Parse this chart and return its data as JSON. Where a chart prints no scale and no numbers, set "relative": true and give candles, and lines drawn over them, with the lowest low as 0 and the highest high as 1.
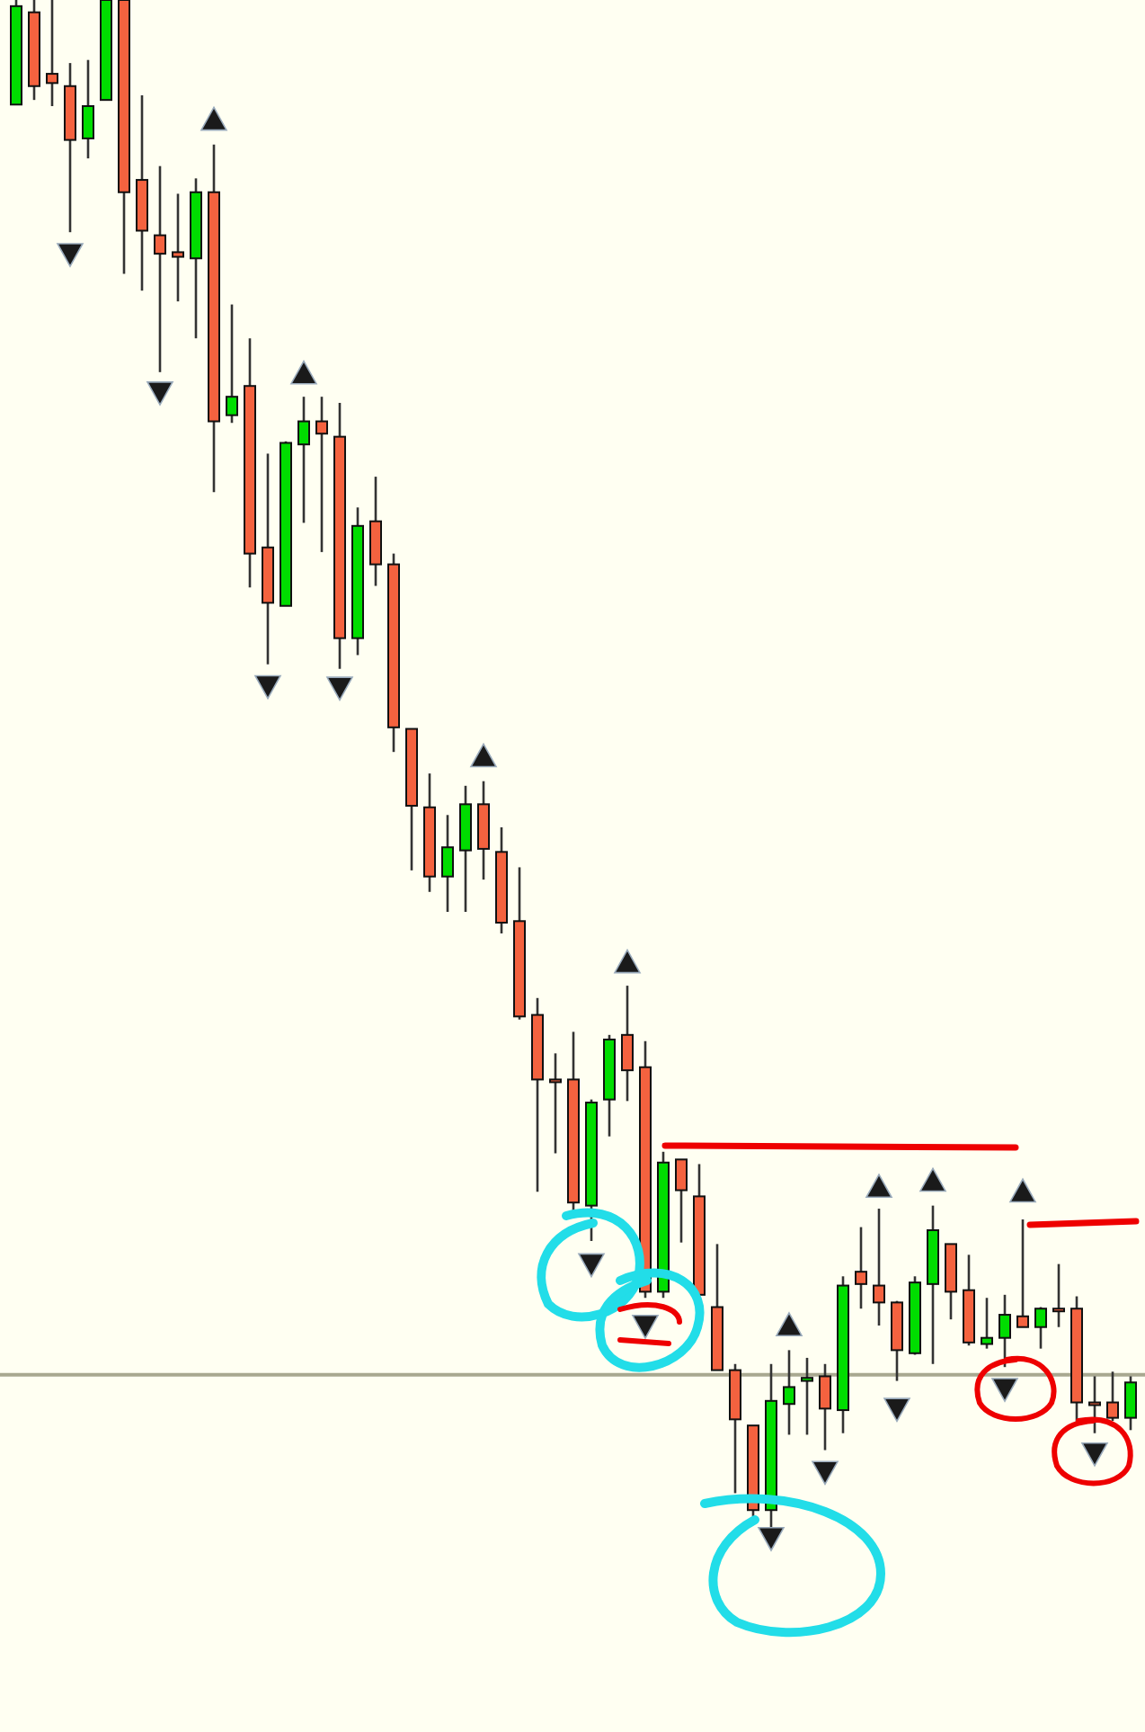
{
  "chart_data": {
    "type": "candlestick",
    "relative": true,
    "categories": [
      null,
      null,
      null,
      null,
      null,
      null,
      null,
      null,
      null,
      null,
      null,
      null,
      null,
      null,
      null,
      null,
      null,
      null,
      null,
      null,
      null,
      null,
      null,
      null,
      null,
      null,
      null,
      null,
      null,
      null,
      null,
      null,
      null,
      null,
      null,
      null,
      null,
      null,
      null,
      null,
      null,
      null,
      null,
      null,
      null,
      null,
      null,
      null,
      null,
      null,
      null,
      null,
      null,
      null,
      null,
      null,
      null,
      null,
      null,
      null,
      null,
      null,
      null
    ],
    "colors": [
      "#00dd00",
      "#f4623f",
      "#f4623f",
      "#f4623f",
      "#00dd00",
      "#00dd00",
      "#f4623f",
      "#f4623f",
      "#f4623f",
      "#f4623f",
      "#00dd00",
      "#f4623f",
      "#00dd00",
      "#f4623f",
      "#f4623f",
      "#00dd00",
      "#00dd00",
      "#f4623f",
      "#f4623f",
      "#00dd00",
      "#f4623f",
      "#f4623f",
      "#f4623f",
      "#f4623f",
      "#00dd00",
      "#00dd00",
      "#f4623f",
      "#f4623f",
      "#f4623f",
      "#f4623f",
      "#f4623f",
      "#f4623f",
      "#00dd00",
      "#00dd00",
      "#f4623f",
      "#f4623f",
      "#00dd00",
      "#f4623f",
      "#f4623f",
      "#f4623f",
      "#f4623f",
      "#f4623f",
      "#00dd00",
      "#00dd00",
      "#00dd00",
      "#f4623f",
      "#00dd00",
      "#f4623f",
      "#f4623f",
      "#f4623f",
      "#00dd00",
      "#00dd00",
      "#f4623f",
      "#f4623f",
      "#00dd00",
      "#00dd00",
      "#f4623f",
      "#00dd00",
      "#f4623f",
      "#f4623f",
      "#f4623f",
      "#f4623f",
      "#00dd00"
    ],
    "ohlc": [
      [
        0.932,
        1,
        0.932,
        0.996
      ],
      [
        0.992,
        1,
        0.935,
        0.944
      ],
      [
        0.952,
        1,
        0.931,
        0.946
      ],
      [
        0.944,
        0.959,
        0.849,
        0.909
      ],
      [
        0.91,
        0.961,
        0.897,
        0.931
      ],
      [
        0.935,
        1,
        0.935,
        1
      ],
      [
        1,
        1,
        0.822,
        0.875
      ],
      [
        0.883,
        0.938,
        0.811,
        0.85
      ],
      [
        0.847,
        0.892,
        0.758,
        0.835
      ],
      [
        0.836,
        0.874,
        0.804,
        0.833
      ],
      [
        0.832,
        0.884,
        0.78,
        0.875
      ],
      [
        0.875,
        0.906,
        0.68,
        0.726
      ],
      [
        0.73,
        0.802,
        0.725,
        0.742
      ],
      [
        0.749,
        0.78,
        0.618,
        0.64
      ],
      [
        0.644,
        0.705,
        0.568,
        0.608
      ],
      [
        0.606,
        0.713,
        0.606,
        0.712
      ],
      [
        0.711,
        0.742,
        0.66,
        0.726
      ],
      [
        0.726,
        0.742,
        0.641,
        0.718
      ],
      [
        0.716,
        0.738,
        0.565,
        0.585
      ],
      [
        0.585,
        0.67,
        0.574,
        0.658
      ],
      [
        0.661,
        0.69,
        0.619,
        0.633
      ],
      [
        0.633,
        0.64,
        0.511,
        0.527
      ],
      [
        0.526,
        0.526,
        0.434,
        0.476
      ],
      [
        0.475,
        0.497,
        0.42,
        0.43
      ],
      [
        0.43,
        0.47,
        0.407,
        0.449
      ],
      [
        0.447,
        0.489,
        0.407,
        0.477
      ],
      [
        0.477,
        0.492,
        0.428,
        0.448
      ],
      [
        0.446,
        0.462,
        0.393,
        0.4
      ],
      [
        0.401,
        0.436,
        0.337,
        0.339
      ],
      [
        0.34,
        0.351,
        0.225,
        0.298
      ],
      [
        0.298,
        0.315,
        0.25,
        0.297
      ],
      [
        0.298,
        0.329,
        0.211,
        0.218
      ],
      [
        0.216,
        0.285,
        0.193,
        0.283
      ],
      [
        0.285,
        0.327,
        0.261,
        0.324
      ],
      [
        0.327,
        0.359,
        0.284,
        0.304
      ],
      [
        0.306,
        0.323,
        0.156,
        0.16
      ],
      [
        0.16,
        0.251,
        0.156,
        0.244
      ],
      [
        0.246,
        0.246,
        0.192,
        0.226
      ],
      [
        0.222,
        0.243,
        0.158,
        0.158
      ],
      [
        0.15,
        0.191,
        0.109,
        0.109
      ],
      [
        0.109,
        0.113,
        0.029,
        0.077
      ],
      [
        0.073,
        0.073,
        0.014,
        0.018
      ],
      [
        0.018,
        0.113,
        0,
        0.089
      ],
      [
        0.087,
        0.122,
        0.067,
        0.098
      ],
      [
        0.102,
        0.117,
        0.067,
        0.104
      ],
      [
        0.105,
        0.113,
        0.057,
        0.084
      ],
      [
        0.083,
        0.17,
        0.068,
        0.164
      ],
      [
        0.173,
        0.202,
        0.149,
        0.165
      ],
      [
        0.164,
        0.214,
        0.138,
        0.153
      ],
      [
        0.153,
        0.154,
        0.102,
        0.122
      ],
      [
        0.12,
        0.17,
        0.119,
        0.166
      ],
      [
        0.165,
        0.216,
        0.113,
        0.2
      ],
      [
        0.191,
        0.191,
        0.142,
        0.16
      ],
      [
        0.161,
        0.184,
        0.125,
        0.127
      ],
      [
        0.126,
        0.156,
        0.123,
        0.13
      ],
      [
        0.13,
        0.158,
        0.111,
        0.145
      ],
      [
        0.144,
        0.207,
        0.137,
        0.137
      ],
      [
        0.137,
        0.15,
        0.123,
        0.149
      ],
      [
        0.149,
        0.178,
        0.137,
        0.149
      ],
      [
        0.149,
        0.157,
        0.074,
        0.088
      ],
      [
        0.088,
        0.105,
        0.068,
        0.088
      ],
      [
        0.088,
        0.108,
        0.076,
        0.078
      ],
      [
        0.078,
        0.105,
        0.07,
        0.101
      ]
    ],
    "series": [
      {
        "type": "scatter",
        "color": "#1a1a1a",
        "marker": "triangle",
        "values": [
          null,
          null,
          null,
          null,
          null,
          null,
          null,
          null,
          null,
          null,
          null,
          0.922,
          null,
          null,
          null,
          null,
          0.757,
          null,
          null,
          null,
          null,
          null,
          null,
          null,
          null,
          null,
          0.508,
          null,
          null,
          null,
          null,
          null,
          null,
          null,
          0.374,
          null,
          null,
          null,
          null,
          null,
          null,
          null,
          null,
          0.138,
          null,
          null,
          null,
          null,
          0.228,
          null,
          null,
          0.232,
          null,
          null,
          null,
          null,
          0.225,
          null,
          null,
          null,
          null,
          null,
          null
        ]
      },
      {
        "type": "scatter",
        "color": "#1a1a1a",
        "marker": "triangle",
        "values": [
          null,
          null,
          null,
          0.835,
          null,
          null,
          null,
          null,
          0.745,
          null,
          null,
          null,
          null,
          null,
          0.554,
          null,
          null,
          null,
          0.553,
          null,
          null,
          null,
          null,
          null,
          null,
          null,
          null,
          null,
          null,
          null,
          null,
          null,
          0.178,
          null,
          null,
          0.138,
          null,
          null,
          null,
          null,
          null,
          null,
          0,
          null,
          null,
          0.043,
          null,
          null,
          null,
          0.084,
          null,
          null,
          null,
          null,
          null,
          0.097,
          null,
          null,
          null,
          null,
          0.055,
          null,
          null
        ]
      }
    ],
    "ref_lines": [
      {
        "axis": "y",
        "value": 0.106,
        "color": "#a8a890"
      }
    ]
  }
}
